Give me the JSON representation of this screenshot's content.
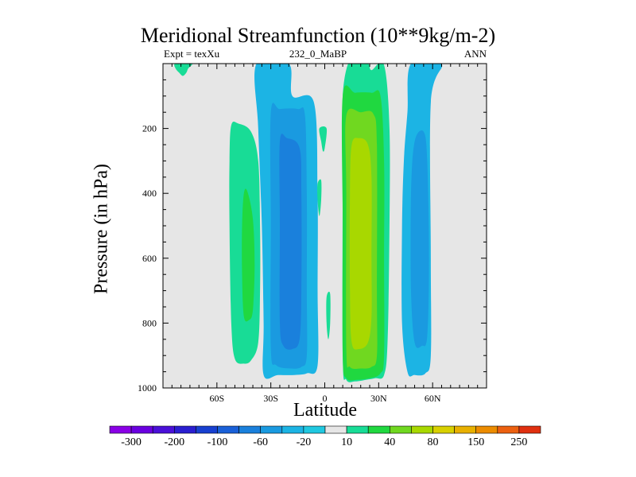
{
  "chart_data": {
    "type": "heatmap",
    "title": "Meridional Streamfunction (10**9kg/m-2)",
    "subtitle_left": "Expt = texXu",
    "subtitle_center": "232_0_MaBP",
    "subtitle_right": "ANN",
    "xlabel": "Latitude",
    "ylabel": "Pressure (in hPa)",
    "xlim": [
      -90,
      90
    ],
    "ylim": [
      1000,
      0
    ],
    "x_ticks": [
      {
        "value": -60,
        "label": "60S"
      },
      {
        "value": -30,
        "label": "30S"
      },
      {
        "value": 0,
        "label": "0"
      },
      {
        "value": 30,
        "label": "30N"
      },
      {
        "value": 60,
        "label": "60N"
      }
    ],
    "y_ticks": [
      {
        "value": 200,
        "label": "200"
      },
      {
        "value": 400,
        "label": "400"
      },
      {
        "value": 600,
        "label": "600"
      },
      {
        "value": 800,
        "label": "800"
      },
      {
        "value": 1000,
        "label": "1000"
      }
    ],
    "background_color": "#e6e6e6",
    "colorbar": {
      "colors": [
        "#8a00e6",
        "#6a00e0",
        "#4a10d8",
        "#2a1ed0",
        "#1840d0",
        "#1a60d8",
        "#1a80dc",
        "#1a9ae0",
        "#1cb4e4",
        "#20c8e0",
        "#e6e6e6",
        "#18dc96",
        "#20d840",
        "#70d820",
        "#a8d800",
        "#d8d000",
        "#e8b000",
        "#ec8c00",
        "#ec6010",
        "#e03010"
      ],
      "labels": [
        {
          "index": 1,
          "text": "-300"
        },
        {
          "index": 3,
          "text": "-200"
        },
        {
          "index": 5,
          "text": "-100"
        },
        {
          "index": 7,
          "text": "-60"
        },
        {
          "index": 9,
          "text": "-20"
        },
        {
          "index": 11,
          "text": "10"
        },
        {
          "index": 13,
          "text": "40"
        },
        {
          "index": 15,
          "text": "80"
        },
        {
          "index": 17,
          "text": "150"
        },
        {
          "index": 19,
          "text": "250"
        }
      ]
    },
    "contour_regions": [
      {
        "name": "sh-polar-cell",
        "level": 10,
        "color": "#18dc96",
        "points": [
          [
            -83,
            0
          ],
          [
            -74,
            0
          ],
          [
            -76,
            15
          ],
          [
            -77,
            28
          ],
          [
            -79,
            38
          ],
          [
            -81,
            28
          ],
          [
            -83,
            15
          ]
        ]
      },
      {
        "name": "sh-ferrel-cell-outer",
        "level": 10,
        "color": "#18dc96",
        "points": [
          [
            -52,
            190
          ],
          [
            -48,
            185
          ],
          [
            -41,
            210
          ],
          [
            -37,
            300
          ],
          [
            -36,
            500
          ],
          [
            -36,
            700
          ],
          [
            -37,
            860
          ],
          [
            -41,
            915
          ],
          [
            -45,
            925
          ],
          [
            -50,
            910
          ],
          [
            -52,
            800
          ],
          [
            -53,
            500
          ],
          [
            -53,
            300
          ]
        ]
      },
      {
        "name": "sh-ferrel-cell-inner",
        "level": 40,
        "color": "#20d840",
        "points": [
          [
            -45,
            400
          ],
          [
            -43,
            395
          ],
          [
            -40,
            480
          ],
          [
            -39,
            620
          ],
          [
            -40,
            760
          ],
          [
            -42,
            790
          ],
          [
            -45,
            780
          ],
          [
            -46,
            650
          ],
          [
            -46,
            500
          ]
        ]
      },
      {
        "name": "sh-hadley-cell-outer",
        "level": -20,
        "color": "#1cb4e4",
        "points": [
          [
            -38,
            0
          ],
          [
            -20,
            0
          ],
          [
            -18,
            100
          ],
          [
            -6,
            120
          ],
          [
            -4,
            400
          ],
          [
            -4,
            700
          ],
          [
            -4,
            930
          ],
          [
            -10,
            955
          ],
          [
            -17,
            960
          ],
          [
            -26,
            960
          ],
          [
            -34,
            960
          ],
          [
            -34,
            800
          ],
          [
            -35,
            500
          ],
          [
            -37,
            200
          ]
        ]
      },
      {
        "name": "sh-hadley-cell-mid",
        "level": -60,
        "color": "#1a9ae0",
        "points": [
          [
            -30,
            150
          ],
          [
            -25,
            140
          ],
          [
            -15,
            140
          ],
          [
            -11,
            160
          ],
          [
            -10,
            400
          ],
          [
            -10,
            700
          ],
          [
            -10,
            900
          ],
          [
            -13,
            935
          ],
          [
            -19,
            940
          ],
          [
            -27,
            930
          ],
          [
            -30,
            880
          ],
          [
            -30,
            500
          ]
        ]
      },
      {
        "name": "sh-hadley-cell-core",
        "level": -100,
        "color": "#1a80dc",
        "points": [
          [
            -25,
            240
          ],
          [
            -21,
            230
          ],
          [
            -14,
            260
          ],
          [
            -13,
            400
          ],
          [
            -13,
            700
          ],
          [
            -14,
            850
          ],
          [
            -18,
            880
          ],
          [
            -23,
            870
          ],
          [
            -25,
            800
          ],
          [
            -25,
            500
          ]
        ]
      },
      {
        "name": "equatorial-patch-upper",
        "level": 10,
        "color": "#18dc96",
        "points": [
          [
            -3,
            200
          ],
          [
            1,
            200
          ],
          [
            0,
            260
          ],
          [
            -1,
            270
          ],
          [
            -2,
            240
          ]
        ]
      },
      {
        "name": "equatorial-patch-mid",
        "level": 10,
        "color": "#18dc96",
        "points": [
          [
            -4,
            370
          ],
          [
            -2,
            360
          ],
          [
            -2,
            420
          ],
          [
            -3,
            470
          ],
          [
            -4,
            420
          ]
        ]
      },
      {
        "name": "equatorial-patch-lower",
        "level": 10,
        "color": "#18dc96",
        "points": [
          [
            1,
            720
          ],
          [
            3,
            710
          ],
          [
            3,
            800
          ],
          [
            2,
            850
          ],
          [
            1,
            800
          ]
        ]
      },
      {
        "name": "nh-hadley-cell-outer",
        "level": 10,
        "color": "#18dc96",
        "points": [
          [
            13,
            0
          ],
          [
            17,
            0
          ],
          [
            24,
            0
          ],
          [
            26,
            20
          ],
          [
            33,
            5
          ],
          [
            36,
            200
          ],
          [
            36,
            500
          ],
          [
            35,
            850
          ],
          [
            33,
            960
          ],
          [
            28,
            970
          ],
          [
            23,
            975
          ],
          [
            17,
            980
          ],
          [
            12,
            975
          ],
          [
            10,
            900
          ],
          [
            10,
            300
          ],
          [
            10,
            100
          ]
        ]
      },
      {
        "name": "nh-hadley-cell-40",
        "level": 40,
        "color": "#20d840",
        "points": [
          [
            10,
            100
          ],
          [
            17,
            90
          ],
          [
            26,
            90
          ],
          [
            31,
            100
          ],
          [
            33,
            300
          ],
          [
            33,
            600
          ],
          [
            33,
            900
          ],
          [
            31,
            955
          ],
          [
            25,
            970
          ],
          [
            18,
            975
          ],
          [
            12,
            970
          ],
          [
            10,
            900
          ],
          [
            10,
            500
          ]
        ]
      },
      {
        "name": "nh-hadley-cell-80",
        "level": 80,
        "color": "#70d820",
        "points": [
          [
            12,
            160
          ],
          [
            20,
            150
          ],
          [
            27,
            155
          ],
          [
            29,
            250
          ],
          [
            29,
            700
          ],
          [
            29,
            900
          ],
          [
            26,
            935
          ],
          [
            20,
            940
          ],
          [
            14,
            935
          ],
          [
            12,
            880
          ],
          [
            12,
            400
          ]
        ]
      },
      {
        "name": "nh-hadley-cell-core",
        "level": 150,
        "color": "#a8d800",
        "points": [
          [
            15,
            250
          ],
          [
            19,
            230
          ],
          [
            24,
            250
          ],
          [
            26,
            350
          ],
          [
            26,
            600
          ],
          [
            26,
            780
          ],
          [
            24,
            860
          ],
          [
            19,
            880
          ],
          [
            15,
            860
          ],
          [
            14,
            700
          ],
          [
            14,
            400
          ]
        ]
      },
      {
        "name": "nh-ferrel-cell-outer",
        "level": -20,
        "color": "#1cb4e4",
        "points": [
          [
            48,
            0
          ],
          [
            65,
            0
          ],
          [
            59,
            120
          ],
          [
            59,
            600
          ],
          [
            59,
            900
          ],
          [
            56,
            955
          ],
          [
            50,
            960
          ],
          [
            46,
            950
          ],
          [
            43,
            800
          ],
          [
            43,
            500
          ],
          [
            44,
            300
          ],
          [
            46,
            150
          ]
        ]
      },
      {
        "name": "nh-ferrel-cell-inner",
        "level": -60,
        "color": "#1a9ae0",
        "points": [
          [
            50,
            240
          ],
          [
            55,
            210
          ],
          [
            57,
            300
          ],
          [
            58,
            600
          ],
          [
            57,
            840
          ],
          [
            54,
            870
          ],
          [
            50,
            860
          ],
          [
            48,
            700
          ],
          [
            48,
            400
          ]
        ]
      }
    ]
  }
}
